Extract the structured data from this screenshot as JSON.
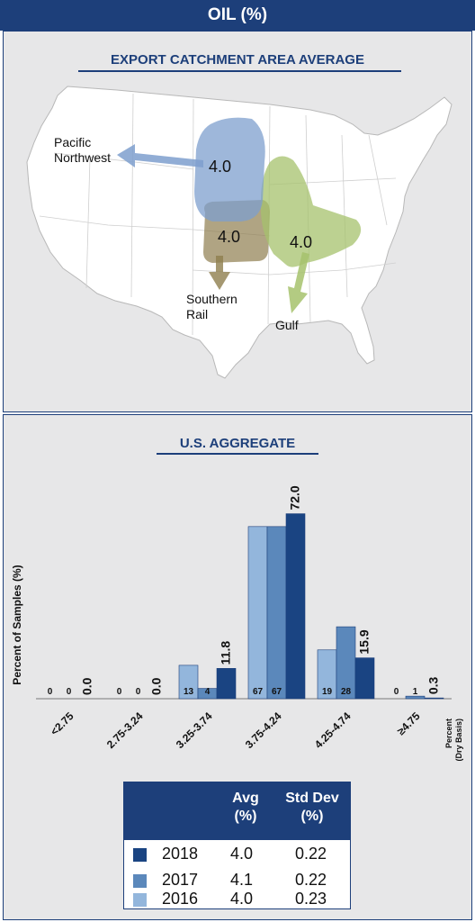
{
  "title": "OIL (%)",
  "map": {
    "title": "EXPORT CATCHMENT AREA AVERAGE",
    "regions": [
      {
        "name": "Pacific\nNorthwest",
        "value": "4.0",
        "color": "#7e9fce"
      },
      {
        "name": "Southern\nRail",
        "value": "4.0",
        "color": "#8e7e4e"
      },
      {
        "name": "Gulf",
        "value": "4.0",
        "color": "#a6c26c"
      }
    ]
  },
  "chart_data": {
    "type": "bar",
    "title": "U.S. AGGREGATE",
    "ylabel": "Percent of Samples (%)",
    "xlabel": "Percent\n(Dry Basis)",
    "categories": [
      "<2.75",
      "2.75-3.24",
      "3.25-3.74",
      "3.75-4.24",
      "4.25-4.74",
      "≥4.75"
    ],
    "series": [
      {
        "name": "2016",
        "color": "#93b6dc",
        "values": [
          0,
          0,
          13,
          67,
          19,
          0
        ],
        "labels": [
          "0",
          "0",
          "13",
          "67",
          "19",
          "0"
        ]
      },
      {
        "name": "2017",
        "color": "#5b88bb",
        "values": [
          0,
          0,
          4,
          67,
          28,
          1
        ],
        "labels": [
          "0",
          "0",
          "4",
          "67",
          "28",
          "1"
        ]
      },
      {
        "name": "2018",
        "color": "#1a4482",
        "values": [
          0.0,
          0.0,
          11.8,
          72.0,
          15.9,
          0.3
        ],
        "labels": [
          "0.0",
          "0.0",
          "11.8",
          "72.0",
          "15.9",
          "0.3"
        ]
      }
    ],
    "ylim": [
      0,
      75
    ],
    "grid": false
  },
  "legend_table": {
    "headers": [
      "Avg\n(%)",
      "Std Dev\n(%)"
    ],
    "rows": [
      {
        "year": "2018",
        "avg": "4.0",
        "std": "0.22",
        "color": "#1a4482"
      },
      {
        "year": "2017",
        "avg": "4.1",
        "std": "0.22",
        "color": "#5b88bb"
      },
      {
        "year": "2016",
        "avg": "4.0",
        "std": "0.23",
        "color": "#93b6dc"
      }
    ]
  }
}
